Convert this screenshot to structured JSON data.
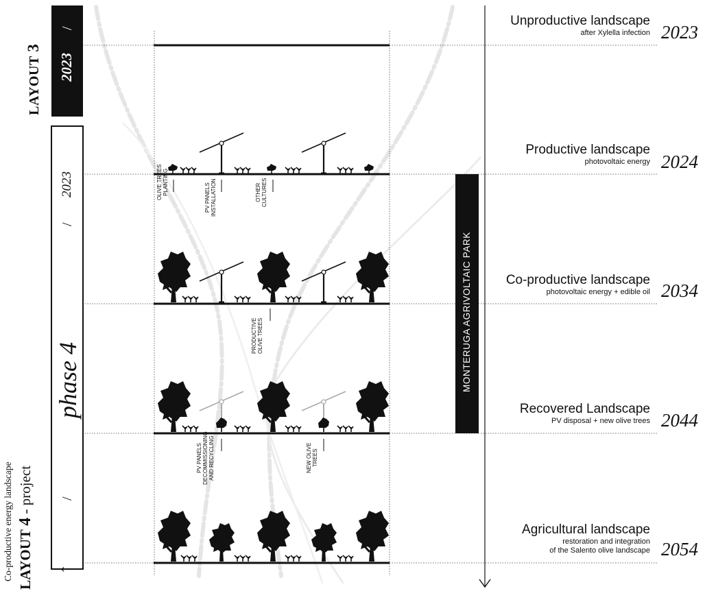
{
  "layout3": {
    "label_word": "LAYOUT",
    "label_num": "3",
    "year_box": "2023",
    "slash": "/"
  },
  "layout4": {
    "label_word": "LAYOUT",
    "label_num": "4",
    "label_suffix": " - project",
    "subtitle": "Co-productive energy landscape",
    "phase": "phase 4",
    "year": "2023",
    "slash_top": "/",
    "slash_bottom": "/",
    "arrow": "←"
  },
  "park_label": "MONTERUGA AGRIVOLTAIC PARK",
  "stages": [
    {
      "title": "Unproductive landscape",
      "subtitle": [
        "after Xylella infection"
      ],
      "year": "2023"
    },
    {
      "title": "Productive landscape",
      "subtitle": [
        "photovoltaic energy"
      ],
      "year": "2024"
    },
    {
      "title": "Co-productive landscape",
      "subtitle": [
        "photovoltaic energy + edible oil"
      ],
      "year": "2034"
    },
    {
      "title": "Recovered Landscape",
      "subtitle": [
        "PV disposal + new olive trees"
      ],
      "year": "2044"
    },
    {
      "title": "Agricultural landscape",
      "subtitle": [
        "restoration and integration",
        "of the Salento olive landscape"
      ],
      "year": "2054"
    }
  ],
  "annotations": {
    "olive_planting": [
      "OLIVE TREES",
      "PLANTING"
    ],
    "pv_installation": [
      "PV PANELS",
      "INSTALLATION"
    ],
    "other_cultures": [
      "OTHER",
      "CULTURES"
    ],
    "productive_olive": [
      "PRODUCTIVE",
      "OLIVE TREES"
    ],
    "pv_decommissioning": [
      "PV PANELS",
      "DECOMMISSIONING",
      "AND RECYCLING"
    ],
    "new_olive": [
      "NEW OLIVE",
      "TREES"
    ]
  },
  "colors": {
    "ink": "#111111",
    "faint_path": "#e6e6e6",
    "faded_panel": "#aaaaaa"
  }
}
